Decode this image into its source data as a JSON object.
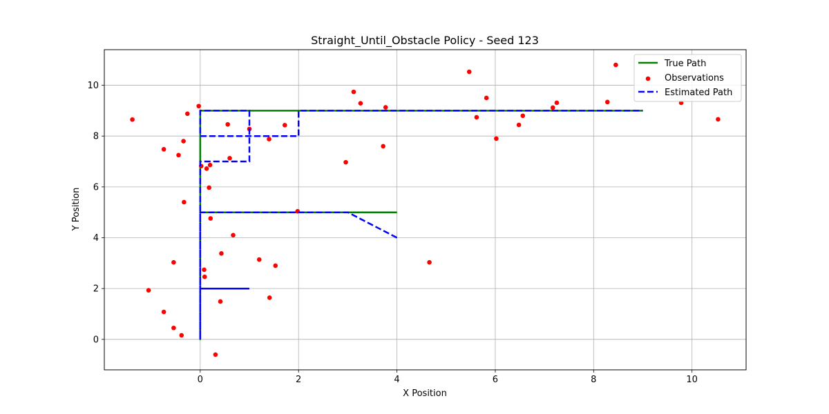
{
  "chart_data": {
    "type": "line",
    "title": "Straight_Until_Obstacle Policy - Seed 123",
    "xlabel": "X Position",
    "ylabel": "Y Position",
    "xlim": [
      -1.95,
      11.1
    ],
    "ylim": [
      -1.2,
      11.4
    ],
    "xticks": [
      0,
      2,
      4,
      6,
      8,
      10
    ],
    "yticks": [
      0,
      2,
      4,
      6,
      8,
      10
    ],
    "grid": true,
    "legend_position": "top-right",
    "series": [
      {
        "name": "True Path",
        "kind": "line",
        "style": "solid",
        "color": "#008000",
        "points": [
          [
            4,
            5
          ],
          [
            0,
            5
          ],
          [
            0,
            0
          ],
          [
            0,
            9
          ],
          [
            9,
            9
          ]
        ]
      },
      {
        "name": "Observations",
        "kind": "scatter",
        "color": "#ff0000",
        "points": [
          [
            -1.38,
            8.65
          ],
          [
            -0.74,
            7.48
          ],
          [
            -0.44,
            7.25
          ],
          [
            -0.34,
            7.8
          ],
          [
            -0.26,
            8.88
          ],
          [
            -0.03,
            9.18
          ],
          [
            0.02,
            6.82
          ],
          [
            0.13,
            6.72
          ],
          [
            0.2,
            6.86
          ],
          [
            0.18,
            5.97
          ],
          [
            0.21,
            4.76
          ],
          [
            -0.33,
            5.4
          ],
          [
            0.56,
            8.46
          ],
          [
            0.6,
            7.13
          ],
          [
            1.0,
            8.28
          ],
          [
            1.4,
            7.88
          ],
          [
            1.72,
            8.43
          ],
          [
            0.67,
            4.1
          ],
          [
            0.43,
            3.38
          ],
          [
            0.08,
            2.74
          ],
          [
            0.09,
            2.46
          ],
          [
            -0.54,
            3.03
          ],
          [
            1.2,
            3.14
          ],
          [
            1.53,
            2.9
          ],
          [
            1.41,
            1.64
          ],
          [
            0.41,
            1.49
          ],
          [
            -1.05,
            1.93
          ],
          [
            -0.74,
            1.08
          ],
          [
            -0.54,
            0.45
          ],
          [
            -0.38,
            0.16
          ],
          [
            0.31,
            -0.6
          ],
          [
            1.98,
            5.04
          ],
          [
            2.96,
            6.97
          ],
          [
            3.12,
            9.74
          ],
          [
            3.26,
            9.29
          ],
          [
            3.77,
            9.13
          ],
          [
            3.72,
            7.6
          ],
          [
            4.66,
            3.03
          ],
          [
            5.47,
            10.53
          ],
          [
            5.62,
            8.74
          ],
          [
            5.82,
            9.5
          ],
          [
            6.02,
            7.9
          ],
          [
            6.48,
            8.44
          ],
          [
            6.56,
            8.8
          ],
          [
            7.17,
            9.12
          ],
          [
            7.25,
            9.31
          ],
          [
            8.28,
            9.34
          ],
          [
            8.45,
            10.8
          ],
          [
            9.78,
            9.31
          ],
          [
            10.53,
            8.66
          ]
        ]
      },
      {
        "name": "Estimated Path",
        "kind": "line",
        "style": "dashed",
        "color": "#0000ff",
        "points": [
          [
            4,
            4
          ],
          [
            3,
            5
          ],
          [
            0,
            5
          ],
          [
            0,
            2
          ],
          [
            1,
            2
          ],
          [
            0,
            2
          ],
          [
            0,
            0
          ],
          [
            0,
            7
          ],
          [
            1,
            7
          ],
          [
            1,
            9
          ],
          [
            0,
            9
          ],
          [
            0,
            8
          ],
          [
            2,
            8
          ],
          [
            2,
            9
          ],
          [
            9,
            9
          ]
        ]
      }
    ]
  },
  "colors": {
    "grid": "#b0b0b0",
    "axis": "#000000",
    "legend_border": "#cccccc"
  }
}
